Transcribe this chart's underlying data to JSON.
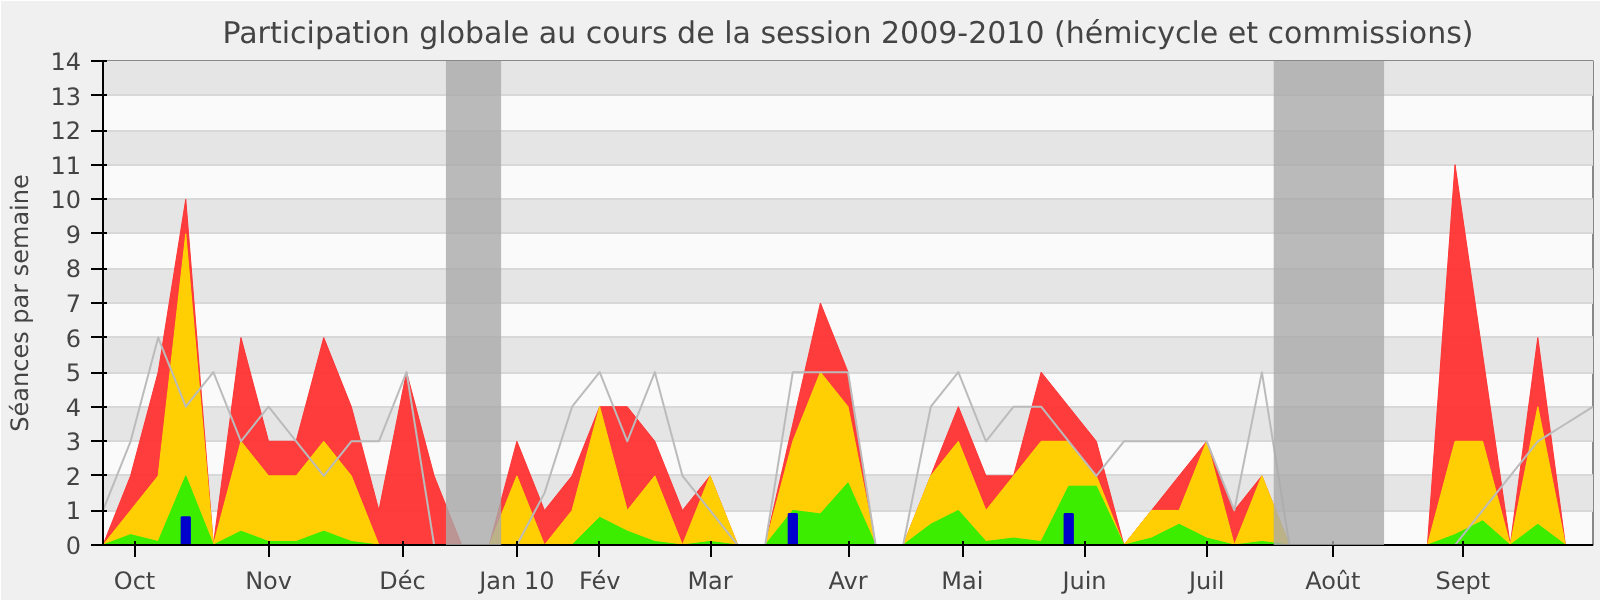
{
  "chart_data": {
    "type": "area",
    "title": "Participation globale au cours de la session 2009-2010 (hémicycle et commissions)",
    "ylabel": "Séances par semaine",
    "x": [
      "2009-10-05",
      "2009-10-12",
      "2009-10-19",
      "2009-10-26",
      "2009-11-02",
      "2009-11-09",
      "2009-11-16",
      "2009-11-23",
      "2009-11-30",
      "2009-12-07",
      "2009-12-14",
      "2009-12-21",
      "2009-12-28",
      "2010-01-04",
      "2010-01-11",
      "2010-01-18",
      "2010-01-25",
      "2010-02-01",
      "2010-02-08",
      "2010-02-15",
      "2010-02-22",
      "2010-03-01",
      "2010-03-08",
      "2010-03-15",
      "2010-03-22",
      "2010-03-29",
      "2010-04-05",
      "2010-04-12",
      "2010-04-19",
      "2010-04-26",
      "2010-05-03",
      "2010-05-10",
      "2010-05-17",
      "2010-05-24",
      "2010-05-31",
      "2010-06-07",
      "2010-06-14",
      "2010-06-21",
      "2010-06-28",
      "2010-07-05",
      "2010-07-12",
      "2010-07-19",
      "2010-07-26",
      "2010-08-02",
      "2010-08-09",
      "2010-08-16",
      "2010-08-23",
      "2010-08-30",
      "2010-09-06",
      "2010-09-13",
      "2010-09-20",
      "2010-09-27",
      "2010-10-04",
      "2010-10-11",
      "2010-10-18"
    ],
    "series": [
      {
        "color": "#ff3333",
        "values": [
          0,
          2,
          5,
          10,
          0,
          6,
          3,
          3,
          6,
          4,
          1,
          5,
          2,
          0,
          0,
          3,
          1,
          2,
          4,
          4,
          3,
          1,
          2,
          0,
          0,
          3.5,
          7,
          5,
          0,
          0,
          2,
          4,
          2,
          2,
          5,
          4,
          3,
          0,
          1,
          2,
          3,
          1,
          2,
          0,
          0,
          0,
          0,
          0,
          0,
          11,
          5.5,
          0,
          6,
          0,
          null
        ]
      },
      {
        "color": "#ffd700",
        "values": [
          0,
          1,
          2,
          9,
          0,
          3,
          2,
          2,
          3,
          2,
          0,
          0,
          0,
          0,
          0,
          2,
          0,
          1,
          4,
          1,
          2,
          0,
          2,
          0,
          0,
          3,
          5,
          4,
          0,
          0,
          2,
          3,
          1,
          2,
          3,
          3,
          2,
          0,
          1,
          1,
          3,
          0,
          2,
          0,
          0,
          0,
          0,
          0,
          0,
          3,
          3,
          0,
          4,
          0,
          null
        ]
      },
      {
        "color": "#33ee00",
        "values": [
          0,
          0.3,
          0.1,
          2,
          0,
          0.4,
          0.1,
          0.1,
          0.4,
          0.1,
          0,
          0,
          0,
          0,
          0,
          0,
          0,
          0,
          0.8,
          0.4,
          0.1,
          0,
          0.1,
          0,
          0,
          1,
          0.9,
          1.8,
          0,
          0,
          0.6,
          1,
          0.1,
          0.2,
          0.1,
          1.7,
          1.7,
          0,
          0.2,
          0.6,
          0.2,
          0,
          0.1,
          0,
          0,
          0,
          0,
          0,
          0,
          0.3,
          0.7,
          0,
          0.6,
          0,
          null
        ]
      },
      {
        "type": "line",
        "color": "#bbbbbb",
        "values": [
          1,
          3,
          6,
          4,
          5,
          3,
          4,
          3,
          2,
          3,
          3,
          5,
          0,
          0,
          0,
          0,
          1.5,
          4,
          5,
          3,
          5,
          2,
          1,
          0,
          0,
          5,
          5,
          5,
          0,
          0,
          4,
          5,
          3,
          4,
          4,
          3,
          2,
          3,
          3,
          3,
          3,
          1,
          5,
          0,
          0,
          0,
          0,
          0,
          0,
          0,
          1,
          2,
          3,
          3.5,
          4
        ]
      },
      {
        "type": "bar",
        "color": "#0000cc",
        "values": [
          null,
          null,
          null,
          0.8,
          null,
          null,
          null,
          null,
          null,
          null,
          null,
          null,
          null,
          null,
          null,
          null,
          null,
          null,
          null,
          null,
          null,
          null,
          null,
          null,
          null,
          0.9,
          null,
          null,
          null,
          null,
          null,
          null,
          null,
          null,
          null,
          0.9,
          null,
          null,
          null,
          null,
          null,
          null,
          null,
          null,
          null,
          null,
          null,
          null,
          null,
          null,
          null,
          null,
          null,
          null,
          null
        ]
      }
    ],
    "bands": [
      {
        "axis": "x",
        "from": "2009-12-31",
        "to": "2010-01-14",
        "color": "#aaaaaa"
      },
      {
        "axis": "x",
        "from": "2010-07-29",
        "to": "2010-08-26",
        "color": "#aaaaaa"
      }
    ],
    "xlim": [
      "2009-10-05",
      "2010-10-18"
    ],
    "xticks": [
      {
        "value": "2009-10-13",
        "label": "Oct"
      },
      {
        "value": "2009-11-16",
        "label": "Nov"
      },
      {
        "value": "2009-12-20",
        "label": "Déc"
      },
      {
        "value": "2010-01-18",
        "label": "Jan 10"
      },
      {
        "value": "2010-02-08",
        "label": "Fév"
      },
      {
        "value": "2010-03-08",
        "label": "Mar"
      },
      {
        "value": "2010-04-12",
        "label": "Avr"
      },
      {
        "value": "2010-05-11",
        "label": "Mai"
      },
      {
        "value": "2010-06-11",
        "label": "Juin"
      },
      {
        "value": "2010-07-12",
        "label": "Juil"
      },
      {
        "value": "2010-08-13",
        "label": "Août"
      },
      {
        "value": "2010-09-15",
        "label": "Sept"
      }
    ],
    "ylim": [
      0,
      14
    ],
    "yticks": [
      0,
      1,
      2,
      3,
      4,
      5,
      6,
      7,
      8,
      9,
      10,
      11,
      12,
      13,
      14
    ],
    "grid": "y"
  }
}
